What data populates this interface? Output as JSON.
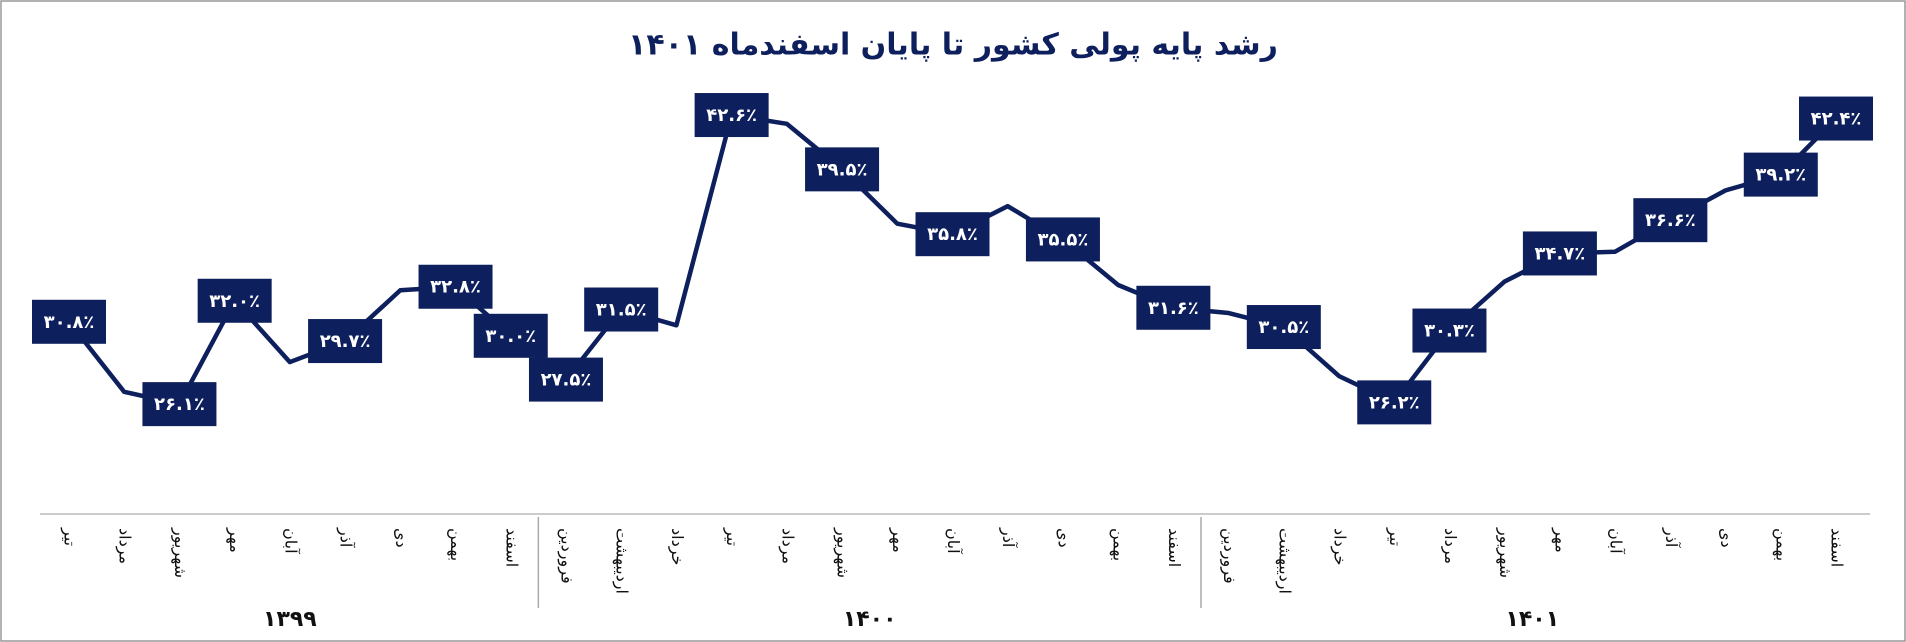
{
  "chart_data": {
    "type": "line",
    "title": "رشد پایه پولی کشور تا پایان اسفندماه ۱۴۰۱",
    "categories": [
      "تیر",
      "مرداد",
      "شهریور",
      "مهر",
      "آبان",
      "آذر",
      "دی",
      "بهمن",
      "اسفند",
      "فروردین",
      "اردیبهشت",
      "خرداد",
      "تیر",
      "مرداد",
      "شهریور",
      "مهر",
      "آبان",
      "آذر",
      "دی",
      "بهمن",
      "اسفند",
      "فروردین",
      "اردیبهشت",
      "خرداد",
      "تیر",
      "مرداد",
      "شهریور",
      "مهر",
      "آبان",
      "آذر",
      "دی",
      "بهمن",
      "اسفند"
    ],
    "groups": [
      {
        "label": "۱۳۹۹",
        "size": 9
      },
      {
        "label": "۱۴۰۰",
        "size": 12
      },
      {
        "label": "۱۴۰۱",
        "size": 12
      }
    ],
    "series": [
      {
        "color": "#0d1f5c",
        "values": [
          30.8,
          26.8,
          26.1,
          32.0,
          28.5,
          29.7,
          32.6,
          32.8,
          30.0,
          27.5,
          31.5,
          30.6,
          42.6,
          42.1,
          39.5,
          36.4,
          35.8,
          37.4,
          35.5,
          32.9,
          31.6,
          31.3,
          30.5,
          27.7,
          26.2,
          30.3,
          33.1,
          34.7,
          34.8,
          36.6,
          38.3,
          39.2,
          42.4
        ],
        "value_labels": [
          "۳۰.۸٪",
          null,
          "۲۶.۱٪",
          "۳۲.۰٪",
          null,
          "۲۹.۷٪",
          null,
          "۳۲.۸٪",
          "۳۰.۰٪",
          "۲۷.۵٪",
          "۳۱.۵٪",
          null,
          "۴۲.۶٪",
          null,
          "۳۹.۵٪",
          null,
          "۳۵.۸٪",
          null,
          "۳۵.۵٪",
          null,
          "۳۱.۶٪",
          null,
          "۳۰.۵٪",
          null,
          "۲۶.۲٪",
          "۳۰.۳٪",
          null,
          "۳۴.۷٪",
          null,
          "۳۶.۶٪",
          null,
          "۳۹.۲٪",
          "۴۲.۴٪"
        ]
      }
    ],
    "ylim": [
      20,
      45
    ]
  }
}
